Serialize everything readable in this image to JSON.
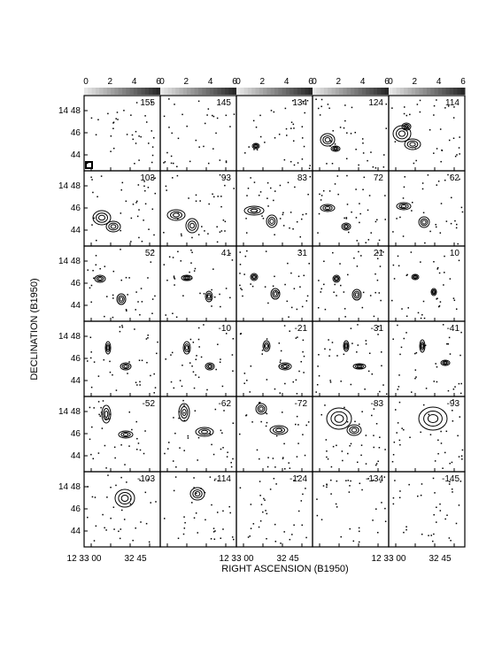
{
  "colorbar": {
    "ticks": [
      "0",
      "2",
      "4",
      "6"
    ]
  },
  "panels": [
    [
      "155",
      "145",
      "134",
      "124",
      "114"
    ],
    [
      "103",
      "93",
      "83",
      "72",
      "62"
    ],
    [
      "52",
      "41",
      "31",
      "21",
      "10"
    ],
    [
      null,
      "-10",
      "-21",
      "-31",
      "-41"
    ],
    [
      "-52",
      "-62",
      "-72",
      "-83",
      "-93"
    ],
    [
      "-103",
      "-114",
      "-124",
      "-134",
      "-145"
    ]
  ],
  "y_axis": {
    "title": "DECLINATION (B1950)",
    "ticks": [
      "14 48",
      "46",
      "44"
    ]
  },
  "x_axis": {
    "title": "RIGHT ASCENSION (B1950)",
    "ticks": [
      "12 33 00",
      "32 45"
    ]
  }
}
